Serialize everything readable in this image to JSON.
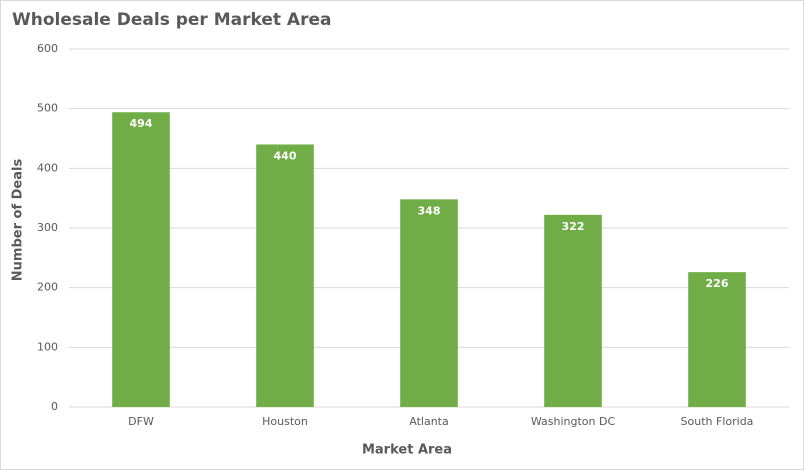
{
  "chart_data": {
    "type": "bar",
    "title": "Wholesale Deals per Market Area",
    "x_label": "Market Area",
    "y_label": "Number of Deals",
    "categories": [
      "DFW",
      "Houston",
      "Atlanta",
      "Washington DC",
      "South Florida"
    ],
    "values": [
      494,
      440,
      348,
      322,
      226
    ],
    "color": "#70ad47",
    "ylim": [
      0,
      600
    ],
    "yticks": [
      0,
      100,
      200,
      300,
      400,
      500,
      600
    ],
    "grid": true
  }
}
